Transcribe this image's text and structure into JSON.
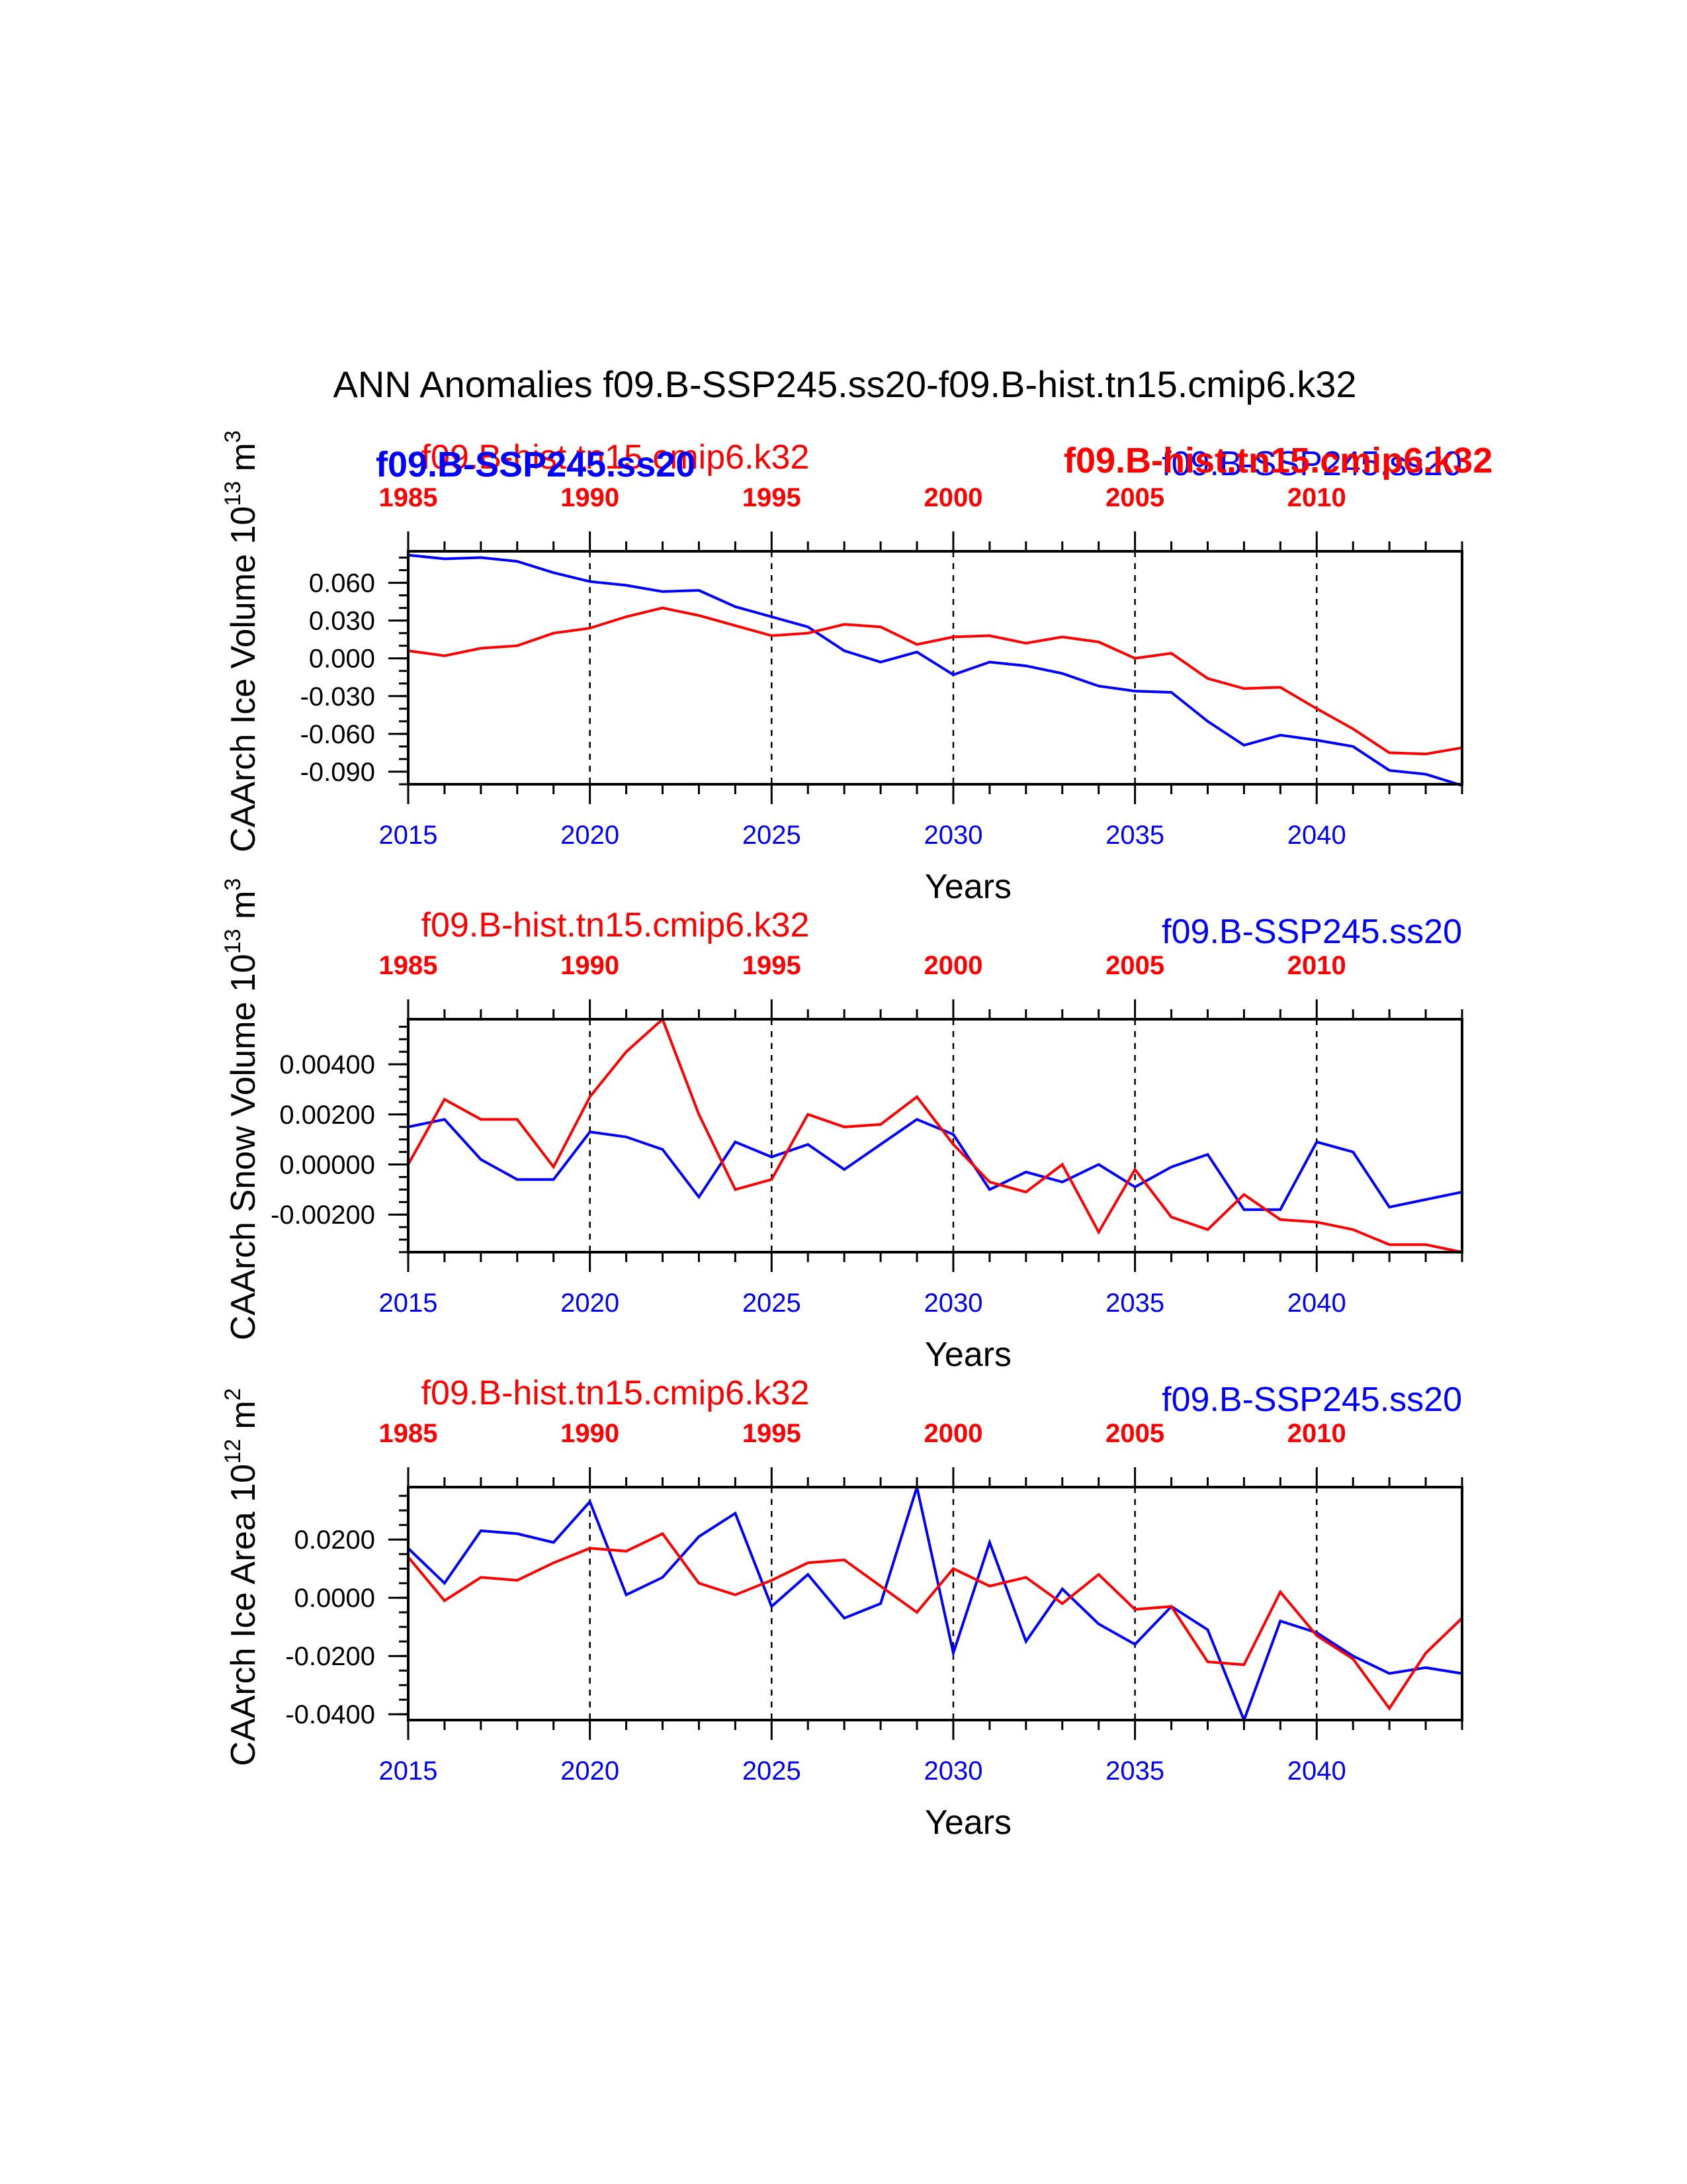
{
  "title": "ANN Anomalies f09.B-SSP245.ss20-f09.B-hist.tn15.cmip6.k32",
  "overlay": {
    "left_label": "f09.B-SSP245.ss20",
    "right_label": "f09.B-hist.tn15.cmip6.k32"
  },
  "colors": {
    "ssp": "#0000ff",
    "hist": "#ff0000",
    "axis": "#000000"
  },
  "chart_data": [
    {
      "type": "line",
      "ylabel": "CAArch Ice Volume",
      "yunit_base": "10",
      "yunit_exp": "13",
      "yunit_tail": " m",
      "yunit_tail_exp": "3",
      "xlabel": "Years",
      "legend_hist": "f09.B-hist.tn15.cmip6.k32",
      "legend_ssp": "f09.B-SSP245.ss20",
      "ylim": [
        -0.1,
        0.085
      ],
      "yticks": [
        0.06,
        0.03,
        0.0,
        -0.03,
        -0.06,
        -0.09
      ],
      "ytick_labels": [
        "0.060",
        "0.030",
        "0.000",
        "-0.030",
        "-0.060",
        "-0.090"
      ],
      "yminor_step": 0.01,
      "series": [
        {
          "name": "f09.B-SSP245.ss20",
          "key": "ssp",
          "values": [
            0.082,
            0.079,
            0.08,
            0.077,
            0.068,
            0.061,
            0.058,
            0.053,
            0.054,
            0.041,
            0.033,
            0.025,
            0.006,
            -0.003,
            0.005,
            -0.013,
            -0.003,
            -0.006,
            -0.012,
            -0.022,
            -0.026,
            -0.027,
            -0.05,
            -0.069,
            -0.061,
            -0.065,
            -0.07,
            -0.089,
            -0.092,
            -0.101
          ]
        },
        {
          "name": "f09.B-hist.tn15.cmip6.k32",
          "key": "hist",
          "values": [
            0.006,
            0.002,
            0.008,
            0.01,
            0.02,
            0.024,
            0.033,
            0.04,
            0.034,
            0.026,
            0.018,
            0.02,
            0.027,
            0.025,
            0.011,
            0.017,
            0.018,
            0.012,
            0.017,
            0.013,
            0.0,
            0.004,
            -0.016,
            -0.024,
            -0.023,
            -0.04,
            -0.056,
            -0.075,
            -0.076,
            -0.071
          ]
        }
      ]
    },
    {
      "type": "line",
      "ylabel": "CAArch Snow Volume",
      "yunit_base": "10",
      "yunit_exp": "13",
      "yunit_tail": " m",
      "yunit_tail_exp": "3",
      "xlabel": "Years",
      "legend_hist": "f09.B-hist.tn15.cmip6.k32",
      "legend_ssp": "f09.B-SSP245.ss20",
      "ylim": [
        -0.0035,
        0.0058
      ],
      "yticks": [
        0.004,
        0.002,
        0.0,
        -0.002
      ],
      "ytick_labels": [
        "0.00400",
        "0.00200",
        "0.00000",
        "-0.00200"
      ],
      "yminor_step": 0.0005,
      "series": [
        {
          "name": "f09.B-SSP245.ss20",
          "key": "ssp",
          "values": [
            0.0015,
            0.0018,
            0.0002,
            -0.0006,
            -0.0006,
            0.0013,
            0.0011,
            0.0006,
            -0.0013,
            0.0009,
            0.0003,
            0.0008,
            -0.0002,
            0.0008,
            0.0018,
            0.0012,
            -0.001,
            -0.0003,
            -0.0007,
            0.0,
            -0.0009,
            -0.0001,
            0.0004,
            -0.0018,
            -0.0018,
            0.0009,
            0.0005,
            -0.0017,
            -0.0014,
            -0.0011
          ]
        },
        {
          "name": "f09.B-hist.tn15.cmip6.k32",
          "key": "hist",
          "values": [
            0.0,
            0.0026,
            0.0018,
            0.0018,
            -0.0001,
            0.0027,
            0.0045,
            0.0058,
            0.002,
            -0.001,
            -0.0006,
            0.002,
            0.0015,
            0.0016,
            0.0027,
            0.0008,
            -0.0007,
            -0.0011,
            0.0,
            -0.0027,
            -0.0002,
            -0.0021,
            -0.0026,
            -0.0012,
            -0.0022,
            -0.0023,
            -0.0026,
            -0.0032,
            -0.0032,
            -0.0035
          ]
        }
      ]
    },
    {
      "type": "line",
      "ylabel": "CAArch Ice Area",
      "yunit_base": "10",
      "yunit_exp": "12",
      "yunit_tail": " m",
      "yunit_tail_exp": "2",
      "xlabel": "Years",
      "legend_hist": "f09.B-hist.tn15.cmip6.k32",
      "legend_ssp": "f09.B-SSP245.ss20",
      "ylim": [
        -0.042,
        0.038
      ],
      "yticks": [
        0.02,
        0.0,
        -0.02,
        -0.04
      ],
      "ytick_labels": [
        "0.0200",
        "0.0000",
        "-0.0200",
        "-0.0400"
      ],
      "yminor_step": 0.005,
      "series": [
        {
          "name": "f09.B-SSP245.ss20",
          "key": "ssp",
          "values": [
            0.017,
            0.005,
            0.023,
            0.022,
            0.019,
            0.033,
            0.001,
            0.007,
            0.021,
            0.029,
            -0.003,
            0.008,
            -0.007,
            -0.002,
            0.038,
            -0.019,
            0.019,
            -0.015,
            0.003,
            -0.009,
            -0.016,
            -0.003,
            -0.011,
            -0.042,
            -0.008,
            -0.012,
            -0.02,
            -0.026,
            -0.024,
            -0.026
          ]
        },
        {
          "name": "f09.B-hist.tn15.cmip6.k32",
          "key": "hist",
          "values": [
            0.014,
            -0.001,
            0.007,
            0.006,
            0.012,
            0.017,
            0.016,
            0.022,
            0.005,
            0.001,
            0.006,
            0.012,
            0.013,
            0.004,
            -0.005,
            0.01,
            0.004,
            0.007,
            -0.002,
            0.008,
            -0.004,
            -0.003,
            -0.022,
            -0.023,
            0.002,
            -0.013,
            -0.021,
            -0.038,
            -0.019,
            -0.007
          ]
        }
      ]
    }
  ],
  "x_axis": {
    "bottom_start": 2015,
    "bottom_end": 2044,
    "bottom_labels": [
      "2015",
      "2020",
      "2025",
      "2030",
      "2035",
      "2040"
    ],
    "top_labels": [
      "1985",
      "1990",
      "1995",
      "2000",
      "2005",
      "2010"
    ]
  }
}
